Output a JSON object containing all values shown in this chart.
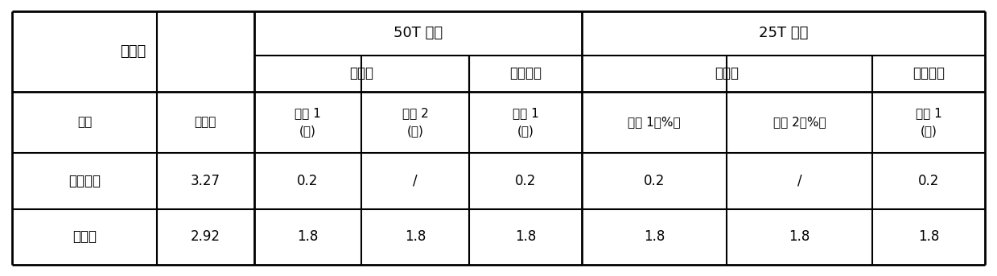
{
  "bg_color": "#ffffff",
  "border_color": "#000000",
  "text_color": "#000000",
  "figsize": [
    12.39,
    3.43
  ],
  "dpi": 100,
  "rows": [
    [
      "黄豆饵粉",
      "3.27",
      "0.2",
      "/",
      "0.2",
      "0.2",
      "/",
      "0.2"
    ],
    [
      "花生饵",
      "2.92",
      "1.8",
      "1.8",
      "1.8",
      "1.8",
      "1.8",
      "1.8"
    ]
  ],
  "col_labels_r2_c0": "名称",
  "col_labels_r2_c1": "计划价",
  "col_labels_r2_c2a": "糖料 1",
  "col_labels_r2_c2b": "(％)",
  "col_labels_r2_c3a": "糖料 2",
  "col_labels_r2_c3b": "(％)",
  "col_labels_r2_c4a": "糖料 1",
  "col_labels_r2_c4b": "(％)",
  "col_labels_r2_c5": "糖料 1（%）",
  "col_labels_r2_c6": "糖料 2（%）",
  "col_labels_r2_c7a": "糖料 1",
  "col_labels_r2_c7b": "(％)",
  "span50T": "50T 糖料",
  "span25T": "25T 糖料",
  "laopf50": "老配方",
  "youpf50": "优化配方",
  "laopf25": "老配方",
  "youpf25": "优化配方",
  "yuancailiao": "原材料",
  "col_props": [
    1.35,
    0.9,
    1.0,
    1.0,
    1.05,
    1.35,
    1.35,
    1.05
  ]
}
